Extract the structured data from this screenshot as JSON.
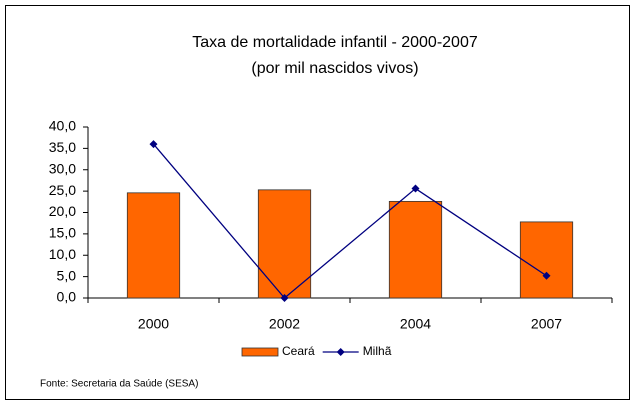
{
  "chart_data": {
    "type": "bar_line",
    "title": "Taxa de mortalidade infantil - 2000-2007",
    "subtitle": "(por mil nascidos vivos)",
    "categories": [
      "2000",
      "2002",
      "2004",
      "2007"
    ],
    "series": [
      {
        "name": "Ceará",
        "type": "bar",
        "color": "#ff6600",
        "values": [
          24.6,
          25.3,
          22.6,
          17.8
        ]
      },
      {
        "name": "Milhã",
        "type": "line",
        "color": "#000080",
        "values": [
          36.0,
          0.0,
          25.6,
          5.2
        ]
      }
    ],
    "ylim": [
      0,
      40
    ],
    "yticks": [
      {
        "value": 0,
        "label": "0,0"
      },
      {
        "value": 5,
        "label": "5,0"
      },
      {
        "value": 10,
        "label": "10,0"
      },
      {
        "value": 15,
        "label": "15,0"
      },
      {
        "value": 20,
        "label": "20,0"
      },
      {
        "value": 25,
        "label": "25,0"
      },
      {
        "value": 30,
        "label": "30,0"
      },
      {
        "value": 35,
        "label": "35,0"
      },
      {
        "value": 40,
        "label": "40,0"
      }
    ],
    "grid": false,
    "legend": "bottom",
    "source": "Fonte: Secretaria da Saúde (SESA)"
  }
}
